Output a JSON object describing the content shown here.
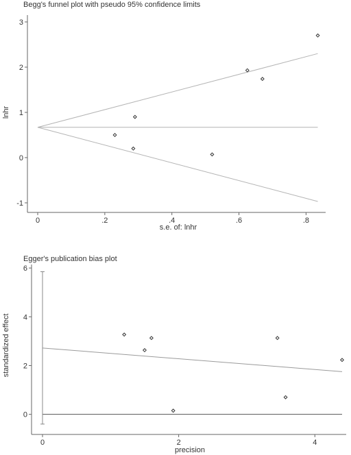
{
  "chart_data": [
    {
      "type": "scatter",
      "title": "Begg's funnel plot with pseudo 95% confidence limits",
      "xlabel": "s.e. of: lnhr",
      "ylabel": "lnhr",
      "xlim": [
        0,
        0.84
      ],
      "ylim": [
        -1,
        3
      ],
      "x_ticks": [
        0,
        0.2,
        0.4,
        0.6,
        0.8
      ],
      "x_tick_labels": [
        "0",
        ".2",
        ".4",
        ".6",
        ".8"
      ],
      "y_ticks": [
        -1,
        0,
        1,
        2,
        3
      ],
      "y_tick_labels": [
        "-1",
        "0",
        "1",
        "2",
        "3"
      ],
      "grid": false,
      "points": {
        "x": [
          0.23,
          0.285,
          0.29,
          0.52,
          0.625,
          0.67,
          0.835
        ],
        "y": [
          0.5,
          0.2,
          0.9,
          0.07,
          1.93,
          1.74,
          2.7
        ]
      },
      "pooled_estimate": 0.67,
      "pseudo_ci_limits": {
        "upper": {
          "x": [
            0,
            0.835
          ],
          "y": [
            0.67,
            2.3
          ]
        },
        "lower": {
          "x": [
            0,
            0.835
          ],
          "y": [
            0.67,
            -0.97
          ]
        }
      },
      "colors": {
        "lines": "#b4b4b4",
        "points": "#333333",
        "axes": "#666666"
      }
    },
    {
      "type": "scatter",
      "title": "Egger's publication bias plot",
      "xlabel": "precision",
      "ylabel": "standardized effect",
      "xlim": [
        0,
        4.4
      ],
      "ylim": [
        -0.6,
        6.2
      ],
      "x_ticks": [
        0,
        2,
        4
      ],
      "x_tick_labels": [
        "0",
        "2",
        "4"
      ],
      "y_ticks": [
        0,
        2,
        4,
        6
      ],
      "y_tick_labels": [
        "0",
        "2",
        "4",
        "6"
      ],
      "grid": false,
      "points": {
        "x": [
          1.2,
          1.5,
          1.6,
          1.92,
          3.45,
          3.57,
          4.4
        ],
        "y": [
          3.27,
          2.63,
          3.13,
          0.15,
          3.13,
          0.7,
          2.23
        ]
      },
      "regression_line": {
        "x": [
          0,
          4.4
        ],
        "y": [
          2.72,
          1.75
        ]
      },
      "zero_line": 0,
      "intercept_ci": {
        "x": 0,
        "low": -0.4,
        "high": 5.85
      },
      "colors": {
        "lines": "#9a9a9a",
        "points": "#333333",
        "axes": "#666666"
      }
    }
  ]
}
